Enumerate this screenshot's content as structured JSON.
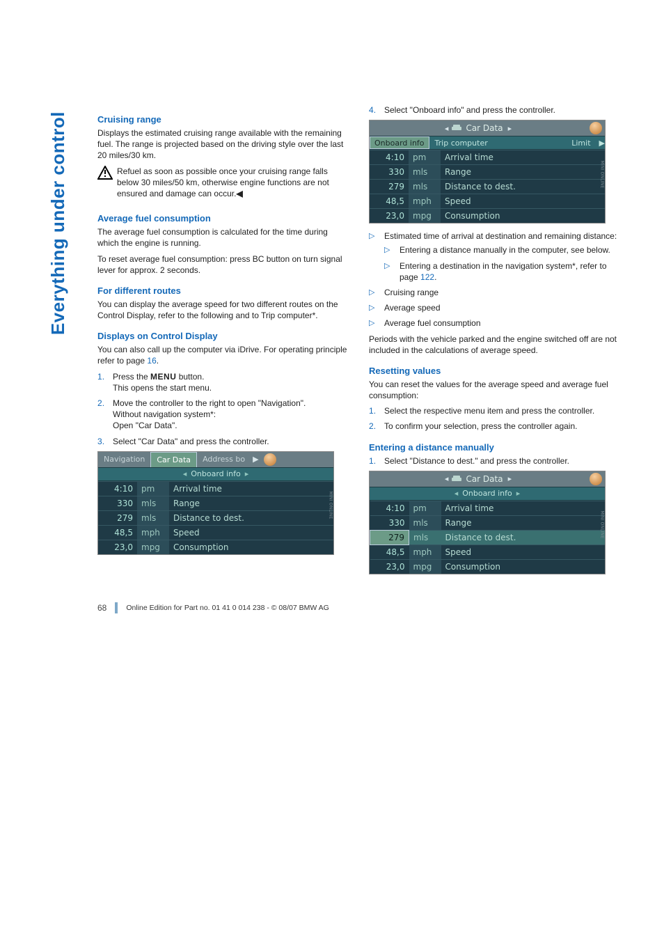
{
  "sidebar_label": "Everything under control",
  "left": {
    "h_cruising": "Cruising range",
    "p_cruising": "Displays the estimated cruising range available with the remaining fuel. The range is projected based on the driving style over the last 20 miles/30 km.",
    "warn_text": "Refuel as soon as possible once your cruising range falls below 30 miles/50 km, otherwise engine functions are not ensured and damage can occur.",
    "h_avg": "Average fuel consumption",
    "p_avg1": "The average fuel consumption is calculated for the time during which the engine is running.",
    "p_avg2": "To reset average fuel consumption: press BC button on turn signal lever for approx. 2 seconds.",
    "h_routes": "For different routes",
    "p_routes": "You can display the average speed for two different routes on the Control Display, refer to the following and to Trip computer*.",
    "h_display": "Displays on Control Display",
    "p_display": "You can also call up the computer via iDrive. For operating principle refer to page ",
    "page_ref_16": "16",
    "step1a": "Press the ",
    "step1_menu": "MENU",
    "step1b": " button.",
    "step1c": "This opens the start menu.",
    "step2a": "Move the controller to the right to open \"Navigation\".",
    "step2b": "Without navigation system*:",
    "step2c": "Open \"Car Data\".",
    "step3": "Select \"Car Data\" and press the controller."
  },
  "right": {
    "step4": "Select \"Onboard info\" and press the controller.",
    "bl1": "Estimated time of arrival at destination and remaining distance:",
    "bl1a": "Entering a distance manually in the computer, see below.",
    "bl1b_a": "Entering a destination in the navigation system*, refer to page ",
    "bl1b_page": "122",
    "bl2": "Cruising range",
    "bl3": "Average speed",
    "bl4": "Average fuel consumption",
    "p_periods": "Periods with the vehicle parked and the engine switched off are not included in the calculations of average speed.",
    "h_reset": "Resetting values",
    "p_reset": "You can reset the values for the average speed and average fuel consumption:",
    "reset1": "Select the respective menu item and press the controller.",
    "reset2": "To confirm your selection, press the controller again.",
    "h_enter": "Entering a distance manually",
    "enter1": "Select \"Distance to dest.\" and press the controller."
  },
  "screens": {
    "tabs_nav": "Navigation",
    "tabs_car": "Car Data",
    "tabs_addr": "Address bo",
    "onboard_info": "Onboard info",
    "trip_computer": "Trip computer",
    "limit": "Limit",
    "car_data_hdr": "Car Data",
    "rows": [
      {
        "v": "4:10",
        "u": "pm",
        "l": "Arrival time"
      },
      {
        "v": "330",
        "u": "mls",
        "l": "Range"
      },
      {
        "v": "279",
        "u": "mls",
        "l": "Distance to dest."
      },
      {
        "v": "48,5",
        "u": "mph",
        "l": "Speed"
      },
      {
        "v": "23,0",
        "u": "mpg",
        "l": "Consumption"
      }
    ]
  },
  "footer": {
    "page": "68",
    "text": "Online Edition for Part no. 01 41 0 014 238 - © 08/07 BMW AG"
  },
  "colors": {
    "accent": "#1469b8",
    "screen_bg": "#2a4a58",
    "screen_row": "#1f3a46",
    "screen_text": "#a7d8cf",
    "tab_active": "#6c9b87"
  }
}
